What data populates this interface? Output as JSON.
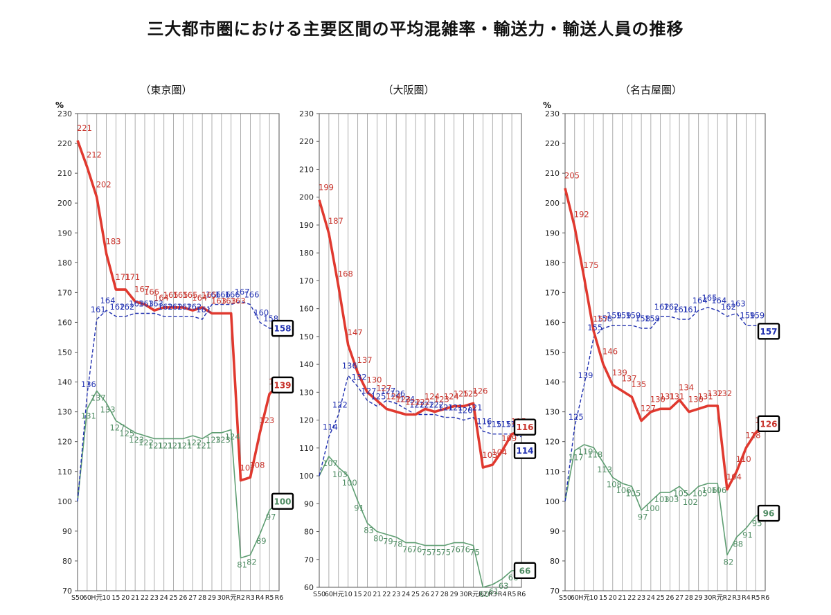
{
  "title": "三大都市圏における主要区間の平均混雑率・輸送力・輸送人員の推移",
  "colors": {
    "congestion": "#e0392f",
    "congestion_label": "#c8332b",
    "capacity": "#1f2fb0",
    "capacity_label": "#1f2fb0",
    "ridership": "#5e9e72",
    "ridership_label": "#4f8c63",
    "grid": "#999999",
    "box": "#000000"
  },
  "chart_data": [
    {
      "type": "line",
      "title": "（東京圏）",
      "unit_label": "%",
      "categories": [
        "S50",
        "60",
        "H元",
        "10",
        "15",
        "20",
        "21",
        "22",
        "23",
        "24",
        "25",
        "26",
        "27",
        "28",
        "29",
        "30",
        "R元",
        "R2",
        "R3",
        "R4",
        "R5",
        "R6"
      ],
      "ylim": [
        70,
        230
      ],
      "yticks": [
        70,
        80,
        90,
        100,
        110,
        120,
        130,
        140,
        150,
        160,
        170,
        180,
        190,
        200,
        210,
        220,
        230
      ],
      "grid": true,
      "series": [
        {
          "key": "congestion",
          "values": [
            221,
            212,
            202,
            183,
            171,
            171,
            167,
            166,
            164,
            165,
            165,
            165,
            164,
            165,
            163,
            163,
            163,
            107,
            108,
            123,
            136,
            139
          ],
          "labels": [
            "221",
            "212",
            "202",
            "183",
            "171",
            "171",
            "167",
            "166",
            "164",
            "165",
            "165",
            "165",
            "164",
            "165",
            "163",
            "163",
            "163",
            "107",
            "108",
            "123",
            "136",
            "139"
          ]
        },
        {
          "key": "capacity",
          "values": [
            100,
            136,
            161,
            164,
            162,
            162,
            163,
            163,
            163,
            162,
            162,
            162,
            162,
            161,
            166,
            166,
            166,
            167,
            166,
            160,
            158,
            158
          ],
          "labels": [
            "",
            "136",
            "161",
            "164",
            "162",
            "162",
            "163",
            "163",
            "163",
            "162",
            "162",
            "162",
            "162",
            "161",
            "166",
            "166",
            "166",
            "167",
            "166",
            "160",
            "158",
            "158"
          ]
        },
        {
          "key": "ridership",
          "values": [
            100,
            131,
            137,
            133,
            127,
            125,
            123,
            122,
            121,
            121,
            121,
            121,
            122,
            121,
            123,
            123,
            124,
            81,
            82,
            89,
            97,
            100
          ],
          "labels": [
            "",
            "131",
            "137",
            "133",
            "127",
            "125",
            "123",
            "122",
            "121",
            "121",
            "121",
            "121",
            "122",
            "121",
            "123",
            "123",
            "124",
            "81",
            "82",
            "89",
            "97",
            "100"
          ]
        }
      ],
      "boxed": [
        "158",
        "139",
        "100"
      ]
    },
    {
      "type": "line",
      "title": "（大阪圏）",
      "unit_label": "",
      "categories": [
        "S50",
        "60",
        "H元",
        "10",
        "15",
        "20",
        "21",
        "22",
        "23",
        "24",
        "25",
        "26",
        "27",
        "28",
        "29",
        "30",
        "R元",
        "R2",
        "R3",
        "R4",
        "R5",
        "R6"
      ],
      "ylim": [
        60,
        230
      ],
      "yticks": [
        60,
        70,
        80,
        90,
        100,
        110,
        120,
        130,
        140,
        150,
        160,
        170,
        180,
        190,
        200,
        210,
        220,
        230
      ],
      "grid": true,
      "series": [
        {
          "key": "congestion",
          "values": [
            199,
            187,
            168,
            147,
            137,
            130,
            127,
            124,
            123,
            122,
            122,
            124,
            123,
            124,
            125,
            125,
            126,
            103,
            104,
            109,
            115,
            116
          ],
          "labels": [
            "199",
            "187",
            "168",
            "147",
            "137",
            "130",
            "127",
            "124",
            "123",
            "122",
            "122",
            "124",
            "123",
            "124",
            "125",
            "125",
            "126",
            "103",
            "104",
            "109",
            "115",
            "116"
          ]
        },
        {
          "key": "capacity",
          "values": [
            100,
            114,
            122,
            136,
            132,
            127,
            125,
            127,
            126,
            124,
            122,
            122,
            122,
            121,
            121,
            120,
            121,
            116,
            115,
            115,
            115,
            114
          ],
          "labels": [
            "",
            "114",
            "122",
            "136",
            "132",
            "127",
            "125",
            "127",
            "126",
            "124",
            "122",
            "122",
            "122",
            "121",
            "121",
            "120",
            "121",
            "116",
            "115",
            "115",
            "115",
            "114"
          ]
        },
        {
          "key": "ridership",
          "values": [
            100,
            107,
            103,
            100,
            91,
            83,
            80,
            79,
            78,
            76,
            76,
            75,
            75,
            75,
            76,
            76,
            75,
            60,
            61,
            63,
            66,
            66
          ],
          "labels": [
            "",
            "107",
            "103",
            "100",
            "91",
            "83",
            "80",
            "79",
            "78",
            "76",
            "76",
            "75",
            "75",
            "75",
            "76",
            "76",
            "75",
            "60",
            "61",
            "63",
            "66",
            "66"
          ]
        }
      ],
      "boxed": [
        "116",
        "114",
        "66"
      ]
    },
    {
      "type": "line",
      "title": "（名古屋圏）",
      "unit_label": "%",
      "categories": [
        "S50",
        "60",
        "H元",
        "10",
        "15",
        "20",
        "21",
        "22",
        "23",
        "24",
        "25",
        "26",
        "27",
        "28",
        "29",
        "30",
        "R元",
        "R2",
        "R3",
        "R4",
        "R5",
        "R6"
      ],
      "ylim": [
        70,
        230
      ],
      "yticks": [
        70,
        80,
        90,
        100,
        110,
        120,
        130,
        140,
        150,
        160,
        170,
        180,
        190,
        200,
        210,
        220,
        230
      ],
      "grid": true,
      "series": [
        {
          "key": "congestion",
          "values": [
            205,
            192,
            175,
            157,
            146,
            139,
            137,
            135,
            127,
            130,
            131,
            131,
            134,
            130,
            131,
            132,
            132,
            104,
            110,
            118,
            123,
            126
          ],
          "labels": [
            "205",
            "192",
            "175",
            "157",
            "146",
            "139",
            "137",
            "135",
            "127",
            "130",
            "131",
            "131",
            "134",
            "130",
            "131",
            "132",
            "132",
            "104",
            "110",
            "118",
            "123",
            "126"
          ]
        },
        {
          "key": "capacity",
          "values": [
            100,
            125,
            139,
            155,
            158,
            159,
            159,
            159,
            158,
            158,
            162,
            162,
            161,
            161,
            164,
            165,
            164,
            162,
            163,
            159,
            159,
            157
          ],
          "labels": [
            "",
            "125",
            "139",
            "155",
            "158",
            "159",
            "159",
            "159",
            "158",
            "158",
            "162",
            "162",
            "161",
            "161",
            "164",
            "165",
            "164",
            "162",
            "163",
            "159",
            "159",
            "157"
          ]
        },
        {
          "key": "ridership",
          "values": [
            100,
            117,
            119,
            118,
            113,
            108,
            106,
            105,
            97,
            100,
            103,
            103,
            105,
            102,
            105,
            106,
            106,
            82,
            88,
            91,
            95,
            96
          ],
          "labels": [
            "",
            "117",
            "119",
            "118",
            "113",
            "108",
            "106",
            "105",
            "97",
            "100",
            "103",
            "103",
            "105",
            "102",
            "105",
            "106",
            "106",
            "82",
            "88",
            "91",
            "95",
            "96"
          ]
        }
      ],
      "boxed": [
        "126",
        "157",
        "96"
      ]
    }
  ]
}
